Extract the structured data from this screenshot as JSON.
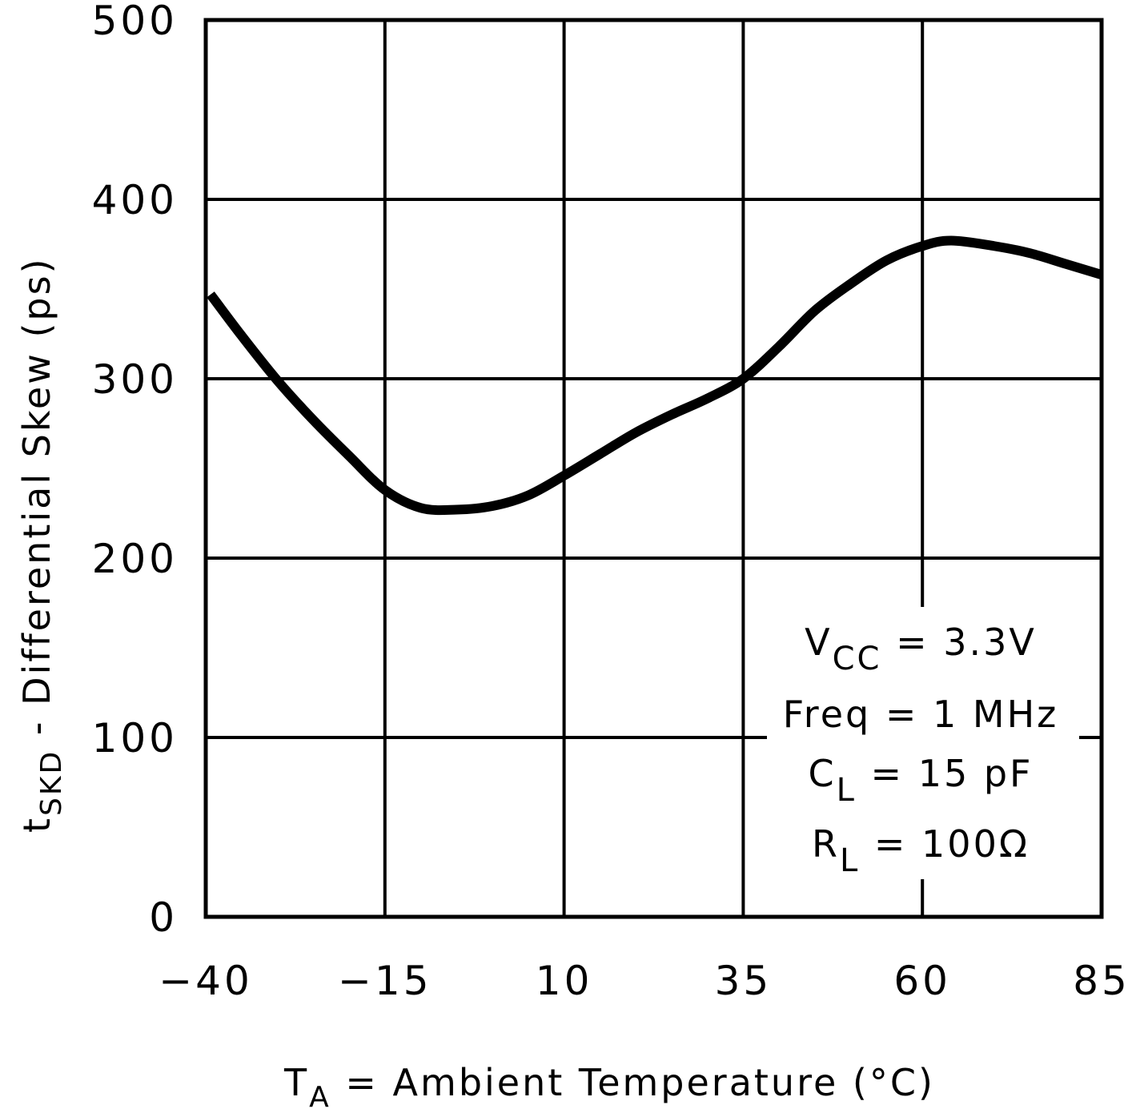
{
  "chart_data": {
    "type": "line",
    "title": "",
    "xlabel": "T_A = Ambient Temperature (°C)",
    "ylabel": "t_SKD - Differential Skew (ps)",
    "xlim": [
      -40,
      85
    ],
    "ylim": [
      0,
      500
    ],
    "x_ticks": [
      "-40",
      "-15",
      "10",
      "35",
      "60",
      "85"
    ],
    "y_ticks": [
      "0",
      "100",
      "200",
      "300",
      "400",
      "500"
    ],
    "grid": true,
    "legend": "none",
    "series": [
      {
        "name": "tSKD",
        "x": [
          -40,
          -35,
          -30,
          -25,
          -20,
          -15,
          -10,
          -5,
          0,
          5,
          10,
          15,
          20,
          25,
          30,
          35,
          40,
          45,
          50,
          55,
          60,
          64,
          70,
          75,
          80,
          85
        ],
        "values": [
          347,
          324,
          299,
          277,
          257,
          238,
          228,
          227,
          229,
          235,
          246,
          258,
          270,
          280,
          289,
          300,
          318,
          338,
          353,
          366,
          374,
          377,
          374,
          370,
          364,
          358
        ]
      }
    ],
    "annotations": [
      "VCC = 3.3V",
      "Freq = 1 MHz",
      "CL = 15 pF",
      "RL = 100Ω"
    ]
  },
  "axes": {
    "xlabel_main": "T",
    "xlabel_sub": "A",
    "xlabel_rest": " = Ambient Temperature (°C)",
    "ylabel_main": "t",
    "ylabel_sub": "SKD",
    "ylabel_rest": " - Differential Skew (ps)"
  },
  "annotation": {
    "line1_main": "V",
    "line1_sub": "CC",
    "line1_rest": " = 3.3V",
    "line2": "Freq = 1 MHz",
    "line3_main": "C",
    "line3_sub": "L",
    "line3_rest": " = 15 pF",
    "line4_main": "R",
    "line4_sub": "L",
    "line4_rest": " = 100Ω"
  }
}
